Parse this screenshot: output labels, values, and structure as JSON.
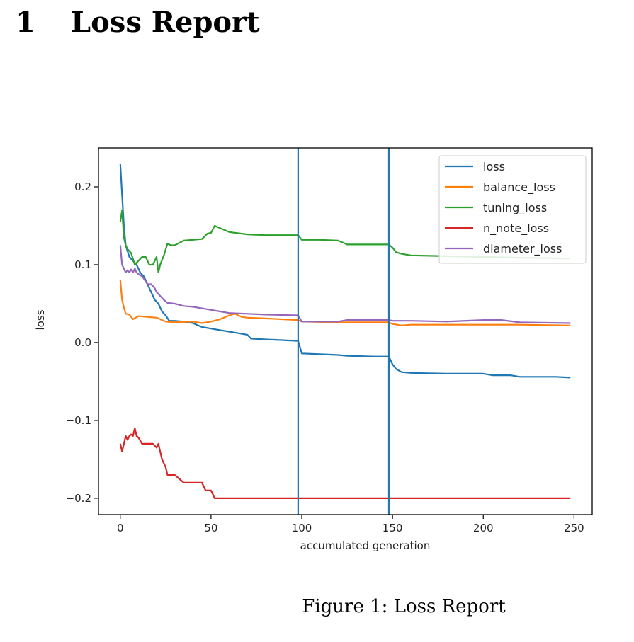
{
  "section": {
    "number": "1",
    "title": "Loss Report"
  },
  "figure": {
    "caption_label": "Figure 1:",
    "caption_text": "Loss Report"
  },
  "chart_data": {
    "type": "line",
    "title": "",
    "xlabel": "accumulated generation",
    "ylabel": "loss",
    "xlim": [
      -12,
      260
    ],
    "ylim": [
      -0.221,
      0.25
    ],
    "xticks": [
      0,
      50,
      100,
      150,
      200,
      250
    ],
    "xtick_labels": [
      "0",
      "50",
      "100",
      "150",
      "200",
      "250"
    ],
    "yticks": [
      -0.2,
      -0.1,
      0.0,
      0.1,
      0.2
    ],
    "ytick_labels": [
      "−0.2",
      "−0.1",
      "0.0",
      "0.1",
      "0.2"
    ],
    "grid": false,
    "legend_position": "top-right",
    "vlines": [
      {
        "x": 98,
        "color": "#1f77b4"
      },
      {
        "x": 148,
        "color": "#1f77b4"
      }
    ],
    "series": [
      {
        "name": "loss",
        "color": "#1f77b4",
        "x": [
          0,
          1,
          2,
          3,
          5,
          7,
          9,
          11,
          13,
          15,
          17,
          19,
          21,
          23,
          25,
          27,
          30,
          35,
          40,
          45,
          50,
          55,
          60,
          65,
          70,
          72,
          80,
          90,
          98,
          100,
          110,
          120,
          125,
          140,
          148,
          150,
          152,
          155,
          160,
          180,
          200,
          205,
          215,
          220,
          240,
          248
        ],
        "y": [
          0.23,
          0.19,
          0.15,
          0.125,
          0.11,
          0.105,
          0.1,
          0.09,
          0.085,
          0.075,
          0.065,
          0.055,
          0.05,
          0.04,
          0.035,
          0.028,
          0.028,
          0.027,
          0.025,
          0.02,
          0.018,
          0.016,
          0.014,
          0.012,
          0.01,
          0.005,
          0.004,
          0.003,
          0.002,
          -0.014,
          -0.015,
          -0.016,
          -0.017,
          -0.018,
          -0.018,
          -0.028,
          -0.034,
          -0.038,
          -0.039,
          -0.04,
          -0.04,
          -0.042,
          -0.042,
          -0.044,
          -0.044,
          -0.045
        ]
      },
      {
        "name": "balance_loss",
        "color": "#ff7f0e",
        "x": [
          0,
          1,
          2,
          3,
          5,
          7,
          10,
          15,
          20,
          25,
          30,
          40,
          45,
          50,
          55,
          60,
          63,
          67,
          70,
          80,
          98,
          100,
          120,
          140,
          148,
          150,
          155,
          160,
          200,
          220,
          248
        ],
        "y": [
          0.08,
          0.055,
          0.045,
          0.037,
          0.036,
          0.03,
          0.034,
          0.033,
          0.032,
          0.027,
          0.026,
          0.027,
          0.025,
          0.027,
          0.03,
          0.035,
          0.037,
          0.033,
          0.032,
          0.031,
          0.029,
          0.027,
          0.026,
          0.026,
          0.026,
          0.024,
          0.022,
          0.023,
          0.023,
          0.023,
          0.022
        ]
      },
      {
        "name": "tuning_loss",
        "color": "#2ca02c",
        "x": [
          0,
          1,
          2,
          3,
          4,
          6,
          8,
          10,
          12,
          14,
          16,
          18,
          20,
          21,
          22,
          24,
          26,
          28,
          30,
          35,
          40,
          45,
          48,
          50,
          52,
          55,
          60,
          70,
          80,
          98,
          100,
          110,
          120,
          125,
          140,
          148,
          150,
          152,
          155,
          160,
          200,
          220,
          248
        ],
        "y": [
          0.155,
          0.17,
          0.135,
          0.125,
          0.12,
          0.115,
          0.1,
          0.105,
          0.11,
          0.11,
          0.1,
          0.1,
          0.11,
          0.09,
          0.1,
          0.112,
          0.127,
          0.125,
          0.125,
          0.131,
          0.132,
          0.133,
          0.14,
          0.141,
          0.15,
          0.147,
          0.142,
          0.139,
          0.138,
          0.138,
          0.132,
          0.132,
          0.131,
          0.126,
          0.126,
          0.126,
          0.122,
          0.116,
          0.114,
          0.112,
          0.11,
          0.109,
          0.108
        ]
      },
      {
        "name": "n_note_loss",
        "color": "#d62728",
        "x": [
          0,
          1,
          2,
          3,
          4,
          5,
          6,
          7,
          8,
          9,
          10,
          12,
          15,
          18,
          20,
          21,
          22,
          23,
          25,
          26,
          30,
          35,
          40,
          45,
          47,
          50,
          52,
          60,
          100,
          150,
          200,
          248
        ],
        "y": [
          -0.13,
          -0.14,
          -0.13,
          -0.12,
          -0.125,
          -0.12,
          -0.118,
          -0.12,
          -0.11,
          -0.12,
          -0.122,
          -0.13,
          -0.13,
          -0.13,
          -0.135,
          -0.13,
          -0.14,
          -0.15,
          -0.16,
          -0.17,
          -0.17,
          -0.18,
          -0.18,
          -0.18,
          -0.19,
          -0.19,
          -0.2,
          -0.2,
          -0.2,
          -0.2,
          -0.2,
          -0.2
        ]
      },
      {
        "name": "diameter_loss",
        "color": "#9467bd",
        "x": [
          0,
          1,
          2,
          3,
          4,
          5,
          6,
          7,
          8,
          9,
          10,
          12,
          13,
          15,
          17,
          19,
          20,
          22,
          24,
          26,
          30,
          35,
          40,
          45,
          50,
          55,
          60,
          70,
          80,
          98,
          100,
          110,
          120,
          125,
          140,
          148,
          150,
          160,
          180,
          200,
          210,
          220,
          248
        ],
        "y": [
          0.125,
          0.1,
          0.095,
          0.09,
          0.093,
          0.09,
          0.094,
          0.09,
          0.095,
          0.09,
          0.088,
          0.085,
          0.082,
          0.075,
          0.075,
          0.07,
          0.065,
          0.06,
          0.055,
          0.051,
          0.05,
          0.047,
          0.046,
          0.044,
          0.042,
          0.04,
          0.038,
          0.037,
          0.036,
          0.035,
          0.027,
          0.027,
          0.027,
          0.029,
          0.029,
          0.029,
          0.028,
          0.028,
          0.027,
          0.029,
          0.029,
          0.026,
          0.025
        ]
      }
    ]
  }
}
